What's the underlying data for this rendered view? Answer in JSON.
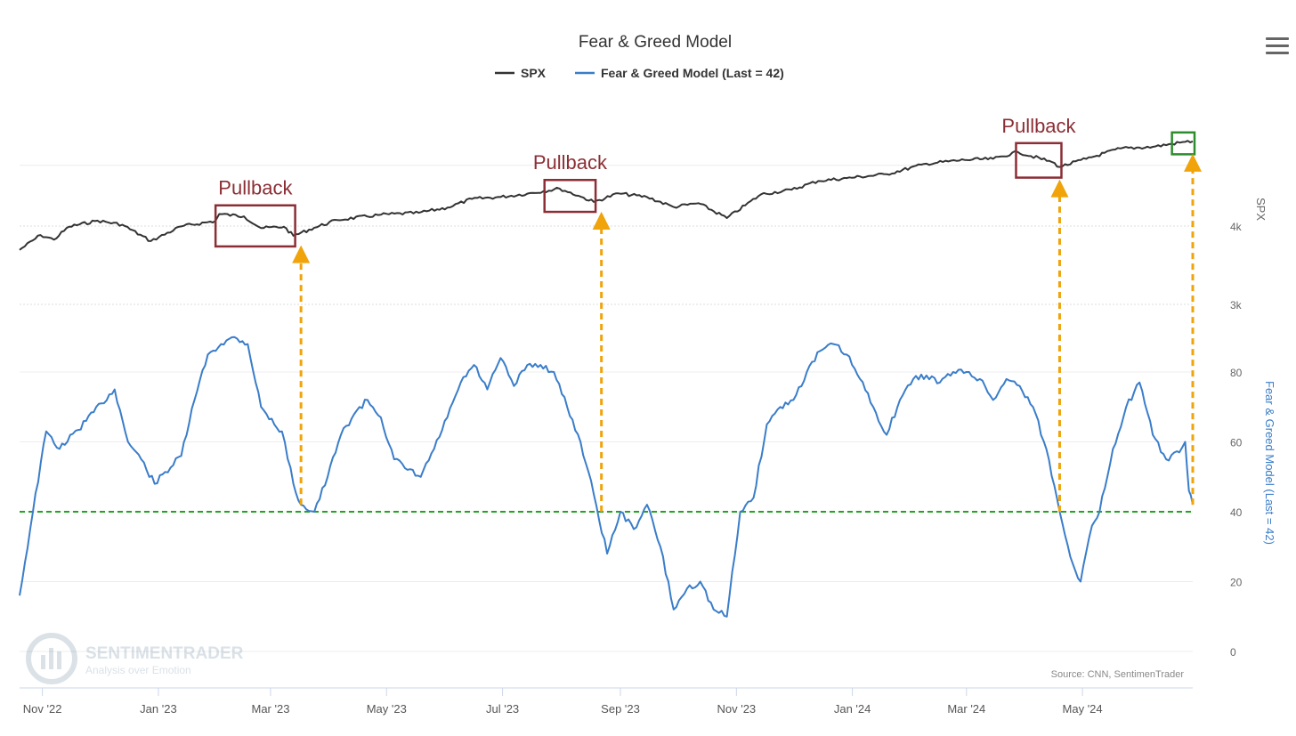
{
  "menu": {
    "icon": "hamburger-menu-icon"
  },
  "chart_data": {
    "type": "line",
    "title": "Fear & Greed Model",
    "source": "Source: CNN, SentimenTrader",
    "watermark": {
      "name": "SENTIMENTRADER",
      "tagline": "Analysis over Emotion"
    },
    "legend": {
      "placement": "top-center",
      "items": [
        {
          "name": "SPX",
          "color": "#333333"
        },
        {
          "name": "Fear & Greed Model (Last = 42)",
          "color": "#3a7dc9"
        }
      ]
    },
    "x_axis": {
      "type": "date",
      "range": [
        "2022-10-20",
        "2024-06-28"
      ],
      "ticks": [
        {
          "date": "2022-11-01",
          "label": "Nov '22"
        },
        {
          "date": "2023-01-01",
          "label": "Jan '23"
        },
        {
          "date": "2023-03-01",
          "label": "Mar '23"
        },
        {
          "date": "2023-05-01",
          "label": "May '23"
        },
        {
          "date": "2023-07-01",
          "label": "Jul '23"
        },
        {
          "date": "2023-09-01",
          "label": "Sep '23"
        },
        {
          "date": "2023-11-01",
          "label": "Nov '23"
        },
        {
          "date": "2024-01-01",
          "label": "Jan '24"
        },
        {
          "date": "2024-03-01",
          "label": "Mar '24"
        },
        {
          "date": "2024-05-01",
          "label": "May '24"
        }
      ]
    },
    "y_axes": [
      {
        "title": "SPX",
        "scale": "log",
        "ticks": [
          {
            "value": 3000,
            "label": "3k"
          },
          {
            "value": 4000,
            "label": "4k"
          }
        ],
        "grid": true
      },
      {
        "title": "Fear & Greed Model (Last = 42)",
        "scale": "linear",
        "range": [
          0,
          100
        ],
        "ticks": [
          {
            "value": 0,
            "label": "0"
          },
          {
            "value": 20,
            "label": "20"
          },
          {
            "value": 40,
            "label": "40"
          },
          {
            "value": 60,
            "label": "60"
          },
          {
            "value": 80,
            "label": "80"
          }
        ],
        "grid": true
      }
    ],
    "series": [
      {
        "name": "SPX",
        "axis": "SPX",
        "color": "#333333",
        "points": [
          [
            "2022-10-20",
            3665
          ],
          [
            "2022-10-31",
            3870
          ],
          [
            "2022-11-07",
            3805
          ],
          [
            "2022-11-15",
            3990
          ],
          [
            "2022-11-30",
            4080
          ],
          [
            "2022-12-13",
            4020
          ],
          [
            "2022-12-28",
            3785
          ],
          [
            "2023-01-13",
            3995
          ],
          [
            "2023-01-31",
            4075
          ],
          [
            "2023-02-02",
            4180
          ],
          [
            "2023-02-15",
            4145
          ],
          [
            "2023-02-24",
            3970
          ],
          [
            "2023-03-08",
            3990
          ],
          [
            "2023-03-13",
            3860
          ],
          [
            "2023-03-24",
            3975
          ],
          [
            "2023-04-05",
            4090
          ],
          [
            "2023-04-28",
            4170
          ],
          [
            "2023-05-18",
            4200
          ],
          [
            "2023-06-02",
            4280
          ],
          [
            "2023-06-15",
            4420
          ],
          [
            "2023-06-30",
            4450
          ],
          [
            "2023-07-14",
            4505
          ],
          [
            "2023-07-31",
            4590
          ],
          [
            "2023-08-10",
            4470
          ],
          [
            "2023-08-18",
            4370
          ],
          [
            "2023-08-31",
            4510
          ],
          [
            "2023-09-15",
            4450
          ],
          [
            "2023-09-29",
            4290
          ],
          [
            "2023-10-12",
            4350
          ],
          [
            "2023-10-27",
            4120
          ],
          [
            "2023-11-14",
            4495
          ],
          [
            "2023-11-30",
            4570
          ],
          [
            "2023-12-14",
            4720
          ],
          [
            "2023-12-29",
            4770
          ],
          [
            "2024-01-19",
            4840
          ],
          [
            "2024-02-09",
            5030
          ],
          [
            "2024-02-29",
            5100
          ],
          [
            "2024-03-15",
            5120
          ],
          [
            "2024-03-28",
            5250
          ],
          [
            "2024-04-15",
            5060
          ],
          [
            "2024-04-19",
            4970
          ],
          [
            "2024-05-03",
            5120
          ],
          [
            "2024-05-21",
            5320
          ],
          [
            "2024-06-07",
            5350
          ],
          [
            "2024-06-24",
            5450
          ],
          [
            "2024-06-28",
            5460
          ]
        ]
      },
      {
        "name": "Fear & Greed Model (Last = 42)",
        "axis": "Fear & Greed Model (Last = 42)",
        "color": "#3a7dc9",
        "points": [
          [
            "2022-10-20",
            16
          ],
          [
            "2022-10-27",
            40
          ],
          [
            "2022-11-03",
            63
          ],
          [
            "2022-11-10",
            58
          ],
          [
            "2022-11-24",
            66
          ],
          [
            "2022-12-02",
            71
          ],
          [
            "2022-12-09",
            75
          ],
          [
            "2022-12-16",
            60
          ],
          [
            "2022-12-23",
            55
          ],
          [
            "2022-12-30",
            48
          ],
          [
            "2023-01-13",
            56
          ],
          [
            "2023-01-20",
            72
          ],
          [
            "2023-01-27",
            85
          ],
          [
            "2023-02-03",
            88
          ],
          [
            "2023-02-10",
            90
          ],
          [
            "2023-02-17",
            88
          ],
          [
            "2023-02-24",
            70
          ],
          [
            "2023-03-03",
            65
          ],
          [
            "2023-03-07",
            63
          ],
          [
            "2023-03-13",
            48
          ],
          [
            "2023-03-17",
            42
          ],
          [
            "2023-03-24",
            40
          ],
          [
            "2023-03-31",
            50
          ],
          [
            "2023-04-07",
            62
          ],
          [
            "2023-04-14",
            68
          ],
          [
            "2023-04-21",
            72
          ],
          [
            "2023-04-28",
            67
          ],
          [
            "2023-05-05",
            55
          ],
          [
            "2023-05-12",
            52
          ],
          [
            "2023-05-19",
            50
          ],
          [
            "2023-05-26",
            58
          ],
          [
            "2023-06-02",
            67
          ],
          [
            "2023-06-09",
            77
          ],
          [
            "2023-06-16",
            82
          ],
          [
            "2023-06-23",
            75
          ],
          [
            "2023-06-30",
            84
          ],
          [
            "2023-07-07",
            76
          ],
          [
            "2023-07-14",
            82
          ],
          [
            "2023-07-21",
            82
          ],
          [
            "2023-07-28",
            80
          ],
          [
            "2023-08-04",
            70
          ],
          [
            "2023-08-11",
            60
          ],
          [
            "2023-08-18",
            45
          ],
          [
            "2023-08-25",
            28
          ],
          [
            "2023-09-01",
            40
          ],
          [
            "2023-09-08",
            35
          ],
          [
            "2023-09-15",
            42
          ],
          [
            "2023-09-22",
            30
          ],
          [
            "2023-09-29",
            12
          ],
          [
            "2023-10-06",
            18
          ],
          [
            "2023-10-13",
            20
          ],
          [
            "2023-10-20",
            12
          ],
          [
            "2023-10-27",
            10
          ],
          [
            "2023-11-03",
            40
          ],
          [
            "2023-11-10",
            44
          ],
          [
            "2023-11-17",
            65
          ],
          [
            "2023-11-24",
            70
          ],
          [
            "2023-12-01",
            72
          ],
          [
            "2023-12-08",
            80
          ],
          [
            "2023-12-15",
            86
          ],
          [
            "2023-12-22",
            88
          ],
          [
            "2023-12-29",
            85
          ],
          [
            "2024-01-05",
            78
          ],
          [
            "2024-01-12",
            70
          ],
          [
            "2024-01-19",
            62
          ],
          [
            "2024-01-26",
            72
          ],
          [
            "2024-02-02",
            78
          ],
          [
            "2024-02-09",
            79
          ],
          [
            "2024-02-16",
            77
          ],
          [
            "2024-02-23",
            80
          ],
          [
            "2024-03-01",
            80
          ],
          [
            "2024-03-08",
            78
          ],
          [
            "2024-03-15",
            72
          ],
          [
            "2024-03-22",
            78
          ],
          [
            "2024-03-29",
            76
          ],
          [
            "2024-04-05",
            70
          ],
          [
            "2024-04-12",
            58
          ],
          [
            "2024-04-19",
            40
          ],
          [
            "2024-04-26",
            25
          ],
          [
            "2024-04-30",
            20
          ],
          [
            "2024-05-06",
            36
          ],
          [
            "2024-05-10",
            40
          ],
          [
            "2024-05-17",
            58
          ],
          [
            "2024-05-24",
            70
          ],
          [
            "2024-05-31",
            77
          ],
          [
            "2024-06-07",
            62
          ],
          [
            "2024-06-14",
            55
          ],
          [
            "2024-06-21",
            57
          ],
          [
            "2024-06-24",
            60
          ],
          [
            "2024-06-26",
            46
          ],
          [
            "2024-06-28",
            42
          ]
        ]
      }
    ],
    "reference_lines": [
      {
        "axis": "Fear & Greed Model (Last = 42)",
        "value": 40,
        "color": "#22a322",
        "style": "dashed"
      }
    ],
    "annotations": [
      {
        "label": "Pullback",
        "from": "2023-02-01",
        "to": "2023-03-13",
        "color": "#8b2e35"
      },
      {
        "label": "Pullback",
        "from": "2023-07-24",
        "to": "2023-08-18",
        "color": "#8b2e35"
      },
      {
        "label": "Pullback",
        "from": "2024-03-28",
        "to": "2024-04-19",
        "color": "#8b2e35"
      },
      {
        "label": "",
        "from": "2024-06-18",
        "to": "2024-06-28",
        "color": "#2e8b2e"
      }
    ],
    "arrows": [
      {
        "date": "2023-03-17",
        "color": "#f0a30a",
        "style": "dashed"
      },
      {
        "date": "2023-08-22",
        "color": "#f0a30a",
        "style": "dashed"
      },
      {
        "date": "2024-04-19",
        "color": "#f0a30a",
        "style": "dashed"
      },
      {
        "date": "2024-06-28",
        "color": "#f0a30a",
        "style": "dashed"
      }
    ]
  }
}
